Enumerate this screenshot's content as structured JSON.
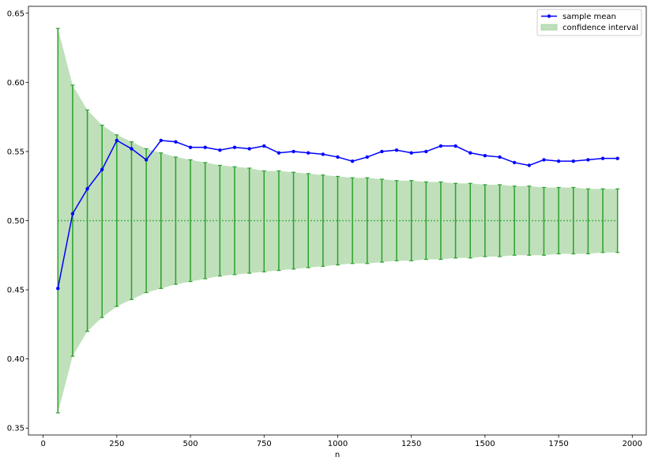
{
  "chart_data": {
    "type": "line",
    "title": "",
    "xlabel": "n",
    "ylabel": "",
    "xlim": [
      -50,
      2047.5
    ],
    "ylim": [
      0.345,
      0.655
    ],
    "xticks": [
      0,
      250,
      500,
      750,
      1000,
      1250,
      1500,
      1750,
      2000
    ],
    "xtick_labels": [
      "0",
      "250",
      "500",
      "750",
      "1000",
      "1250",
      "1500",
      "1750",
      "2000"
    ],
    "yticks": [
      0.35,
      0.4,
      0.45,
      0.5,
      0.55,
      0.6,
      0.65
    ],
    "ytick_labels": [
      "0.35",
      "0.40",
      "0.45",
      "0.50",
      "0.55",
      "0.60",
      "0.65"
    ],
    "grid": false,
    "legend_position": "top-right",
    "reference_line": {
      "y": 0.5,
      "style": "dotted",
      "color": "#2ca02c"
    },
    "x": [
      50,
      100,
      150,
      200,
      250,
      300,
      350,
      400,
      450,
      500,
      550,
      600,
      650,
      700,
      750,
      800,
      850,
      900,
      950,
      1000,
      1050,
      1100,
      1150,
      1200,
      1250,
      1300,
      1350,
      1400,
      1450,
      1500,
      1550,
      1600,
      1650,
      1700,
      1750,
      1800,
      1850,
      1900,
      1950
    ],
    "series": [
      {
        "name": "sample mean",
        "kind": "line-marker",
        "color": "#0000ff",
        "values": [
          0.451,
          0.505,
          0.523,
          0.537,
          0.558,
          0.552,
          0.544,
          0.558,
          0.557,
          0.553,
          0.553,
          0.551,
          0.553,
          0.552,
          0.554,
          0.549,
          0.55,
          0.549,
          0.548,
          0.546,
          0.543,
          0.546,
          0.55,
          0.551,
          0.549,
          0.55,
          0.554,
          0.554,
          0.549,
          0.547,
          0.546,
          0.542,
          0.54,
          0.544,
          0.543,
          0.543,
          0.544,
          0.545,
          0.545
        ]
      },
      {
        "name": "confidence interval",
        "kind": "band",
        "color": "#2ca02c",
        "fill": "#bfe0bb",
        "lower": [
          0.361,
          0.402,
          0.42,
          0.43,
          0.438,
          0.443,
          0.448,
          0.451,
          0.454,
          0.456,
          0.458,
          0.46,
          0.461,
          0.462,
          0.463,
          0.464,
          0.465,
          0.466,
          0.467,
          0.468,
          0.469,
          0.469,
          0.47,
          0.471,
          0.471,
          0.472,
          0.472,
          0.473,
          0.473,
          0.474,
          0.474,
          0.475,
          0.475,
          0.475,
          0.476,
          0.476,
          0.476,
          0.477,
          0.477
        ],
        "upper": [
          0.639,
          0.598,
          0.58,
          0.569,
          0.562,
          0.557,
          0.552,
          0.549,
          0.546,
          0.544,
          0.542,
          0.54,
          0.539,
          0.538,
          0.536,
          0.536,
          0.535,
          0.534,
          0.533,
          0.532,
          0.531,
          0.531,
          0.53,
          0.529,
          0.529,
          0.528,
          0.528,
          0.527,
          0.527,
          0.526,
          0.526,
          0.525,
          0.525,
          0.524,
          0.524,
          0.524,
          0.523,
          0.523,
          0.523
        ]
      }
    ]
  }
}
